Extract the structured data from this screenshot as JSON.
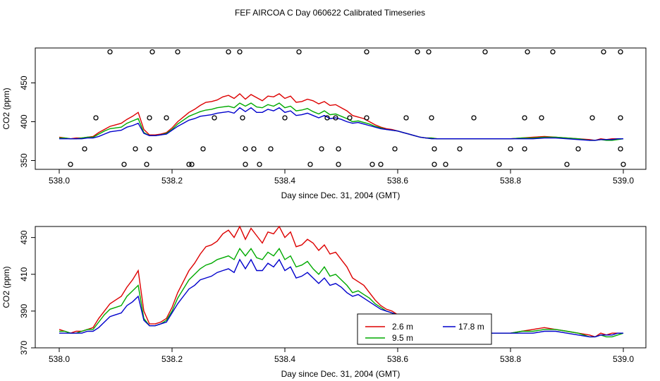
{
  "figure": {
    "title": "FEF AIRCOA C  Day 060622  Calibrated Timeseries"
  },
  "chart_data": [
    {
      "type": "scatter+line",
      "xlabel": "Day since Dec. 31, 2004 (GMT)",
      "ylabel": "CO2 (ppm)",
      "xlim": [
        538.0,
        539.0
      ],
      "ylim": [
        345,
        495
      ],
      "x_ticks": [
        "538.0",
        "538.2",
        "538.4",
        "538.6",
        "538.8",
        "539.0"
      ],
      "y_ticks": [
        "350",
        "400",
        "450"
      ],
      "series": [
        {
          "color": "#dd0000",
          "x": [
            538.0,
            538.01,
            538.02,
            538.03,
            538.04,
            538.05,
            538.06,
            538.07,
            538.08,
            538.09,
            538.1,
            538.11,
            538.12,
            538.13,
            538.14,
            538.15,
            538.16,
            538.17,
            538.18,
            538.19,
            538.2,
            538.21,
            538.22,
            538.23,
            538.24,
            538.25,
            538.26,
            538.27,
            538.28,
            538.29,
            538.3,
            538.31,
            538.32,
            538.33,
            538.34,
            538.35,
            538.36,
            538.37,
            538.38,
            538.39,
            538.4,
            538.41,
            538.42,
            538.43,
            538.44,
            538.45,
            538.46,
            538.47,
            538.48,
            538.49,
            538.5,
            538.51,
            538.52,
            538.53,
            538.54,
            538.55,
            538.56,
            538.57,
            538.58,
            538.59,
            538.6,
            538.61,
            538.62,
            538.63,
            538.64,
            538.65,
            538.66,
            538.67,
            538.68,
            538.69,
            538.7,
            538.72,
            538.74,
            538.76,
            538.78,
            538.8,
            538.82,
            538.84,
            538.86,
            538.88,
            538.9,
            538.92,
            538.94,
            538.95,
            538.96,
            538.97,
            538.98,
            538.99,
            539.0
          ],
          "y": [
            380,
            379,
            378,
            379,
            379,
            380,
            381,
            386,
            390,
            394,
            396,
            398,
            403,
            407,
            412,
            390,
            383,
            383,
            384,
            386,
            392,
            400,
            406,
            412,
            416,
            421,
            425,
            426,
            428,
            432,
            434,
            430,
            436,
            429,
            435,
            431,
            427,
            433,
            432,
            436,
            430,
            433,
            425,
            426,
            429,
            427,
            423,
            426,
            421,
            422,
            418,
            414,
            408,
            406,
            404,
            400,
            396,
            393,
            391,
            390,
            388,
            386,
            384,
            382,
            380,
            379,
            379,
            378,
            378,
            378,
            378,
            378,
            378,
            378,
            378,
            378,
            379,
            380,
            381,
            380,
            379,
            378,
            377,
            376,
            378,
            377,
            378,
            378,
            378
          ]
        },
        {
          "color": "#00aa00",
          "x": [
            538.0,
            538.01,
            538.02,
            538.03,
            538.04,
            538.05,
            538.06,
            538.07,
            538.08,
            538.09,
            538.1,
            538.11,
            538.12,
            538.13,
            538.14,
            538.15,
            538.16,
            538.17,
            538.18,
            538.19,
            538.2,
            538.21,
            538.22,
            538.23,
            538.24,
            538.25,
            538.26,
            538.27,
            538.28,
            538.29,
            538.3,
            538.31,
            538.32,
            538.33,
            538.34,
            538.35,
            538.36,
            538.37,
            538.38,
            538.39,
            538.4,
            538.41,
            538.42,
            538.43,
            538.44,
            538.45,
            538.46,
            538.47,
            538.48,
            538.49,
            538.5,
            538.51,
            538.52,
            538.53,
            538.54,
            538.55,
            538.56,
            538.57,
            538.58,
            538.59,
            538.6,
            538.61,
            538.62,
            538.63,
            538.64,
            538.65,
            538.66,
            538.67,
            538.68,
            538.69,
            538.7,
            538.72,
            538.74,
            538.76,
            538.78,
            538.8,
            538.82,
            538.84,
            538.86,
            538.88,
            538.9,
            538.92,
            538.94,
            538.95,
            538.96,
            538.97,
            538.98,
            538.99,
            539.0
          ],
          "y": [
            379,
            379,
            378,
            378,
            379,
            380,
            380,
            384,
            388,
            391,
            392,
            393,
            398,
            401,
            404,
            386,
            382,
            382,
            383,
            385,
            390,
            397,
            402,
            407,
            410,
            413,
            415,
            416,
            418,
            419,
            420,
            418,
            424,
            420,
            424,
            419,
            418,
            422,
            420,
            424,
            418,
            420,
            414,
            415,
            417,
            413,
            410,
            414,
            409,
            410,
            407,
            404,
            400,
            401,
            399,
            397,
            394,
            392,
            390,
            389,
            388,
            386,
            384,
            382,
            380,
            379,
            379,
            378,
            378,
            378,
            378,
            378,
            378,
            378,
            378,
            378,
            379,
            379,
            380,
            380,
            379,
            378,
            376,
            376,
            377,
            376,
            376,
            377,
            378
          ]
        },
        {
          "color": "#0000cc",
          "x": [
            538.0,
            538.01,
            538.02,
            538.03,
            538.04,
            538.05,
            538.06,
            538.07,
            538.08,
            538.09,
            538.1,
            538.11,
            538.12,
            538.13,
            538.14,
            538.15,
            538.16,
            538.17,
            538.18,
            538.19,
            538.2,
            538.21,
            538.22,
            538.23,
            538.24,
            538.25,
            538.26,
            538.27,
            538.28,
            538.29,
            538.3,
            538.31,
            538.32,
            538.33,
            538.34,
            538.35,
            538.36,
            538.37,
            538.38,
            538.39,
            538.4,
            538.41,
            538.42,
            538.43,
            538.44,
            538.45,
            538.46,
            538.47,
            538.48,
            538.49,
            538.5,
            538.51,
            538.52,
            538.53,
            538.54,
            538.55,
            538.56,
            538.57,
            538.58,
            538.59,
            538.6,
            538.61,
            538.62,
            538.63,
            538.64,
            538.65,
            538.66,
            538.67,
            538.68,
            538.69,
            538.7,
            538.72,
            538.74,
            538.76,
            538.78,
            538.8,
            538.82,
            538.84,
            538.86,
            538.88,
            538.9,
            538.92,
            538.94,
            538.95,
            538.96,
            538.97,
            538.98,
            538.99,
            539.0
          ],
          "y": [
            378,
            378,
            378,
            378,
            378,
            379,
            379,
            381,
            384,
            387,
            388,
            389,
            393,
            395,
            398,
            385,
            382,
            382,
            383,
            384,
            389,
            394,
            398,
            402,
            404,
            407,
            408,
            409,
            411,
            412,
            413,
            411,
            418,
            413,
            418,
            412,
            412,
            416,
            414,
            418,
            412,
            414,
            408,
            409,
            411,
            408,
            405,
            408,
            404,
            405,
            403,
            400,
            398,
            399,
            397,
            395,
            393,
            391,
            390,
            389,
            388,
            386,
            384,
            382,
            380,
            379,
            378,
            378,
            378,
            378,
            378,
            378,
            378,
            378,
            378,
            378,
            378,
            378,
            379,
            379,
            378,
            377,
            376,
            376,
            377,
            377,
            377,
            378,
            378
          ]
        }
      ],
      "markers": {
        "x": [
          538.02,
          538.045,
          538.065,
          538.09,
          538.115,
          538.135,
          538.155,
          538.16,
          538.16,
          538.165,
          538.19,
          538.21,
          538.23,
          538.235,
          538.255,
          538.275,
          538.3,
          538.32,
          538.325,
          538.33,
          538.33,
          538.345,
          538.355,
          538.375,
          538.4,
          538.425,
          538.445,
          538.465,
          538.475,
          538.49,
          538.495,
          538.495,
          538.515,
          538.545,
          538.545,
          538.555,
          538.57,
          538.595,
          538.615,
          538.635,
          538.655,
          538.66,
          538.665,
          538.665,
          538.685,
          538.71,
          538.735,
          538.755,
          538.78,
          538.8,
          538.825,
          538.825,
          538.83,
          538.855,
          538.875,
          538.9,
          538.92,
          538.945,
          538.965,
          538.995,
          538.995,
          538.995,
          539.0
        ],
        "y": [
          345,
          365,
          405,
          490,
          345,
          365,
          345,
          365,
          405,
          490,
          405,
          490,
          345,
          345,
          365,
          405,
          490,
          490,
          405,
          365,
          345,
          365,
          345,
          365,
          405,
          490,
          345,
          365,
          405,
          405,
          365,
          345,
          405,
          490,
          405,
          345,
          345,
          365,
          405,
          490,
          490,
          405,
          365,
          345,
          345,
          365,
          405,
          490,
          345,
          365,
          405,
          365,
          490,
          405,
          490,
          345,
          365,
          405,
          490,
          490,
          405,
          365,
          345
        ]
      }
    },
    {
      "type": "line",
      "xlabel": "Day since Dec. 31, 2004 (GMT)",
      "ylabel": "CO2 (ppm)",
      "xlim": [
        538.0,
        539.0
      ],
      "ylim": [
        370,
        436
      ],
      "x_ticks": [
        "538.0",
        "538.2",
        "538.4",
        "538.6",
        "538.8",
        "539.0"
      ],
      "y_ticks": [
        "370",
        "390",
        "410",
        "430"
      ],
      "legend": {
        "placement": "bottom-center",
        "entries": [
          {
            "label": "2.6 m",
            "color": "#dd0000"
          },
          {
            "label": "9.5 m",
            "color": "#00aa00"
          },
          {
            "label": "17.8 m",
            "color": "#0000cc"
          }
        ]
      },
      "series_ref": "same as panel 1 series"
    }
  ]
}
